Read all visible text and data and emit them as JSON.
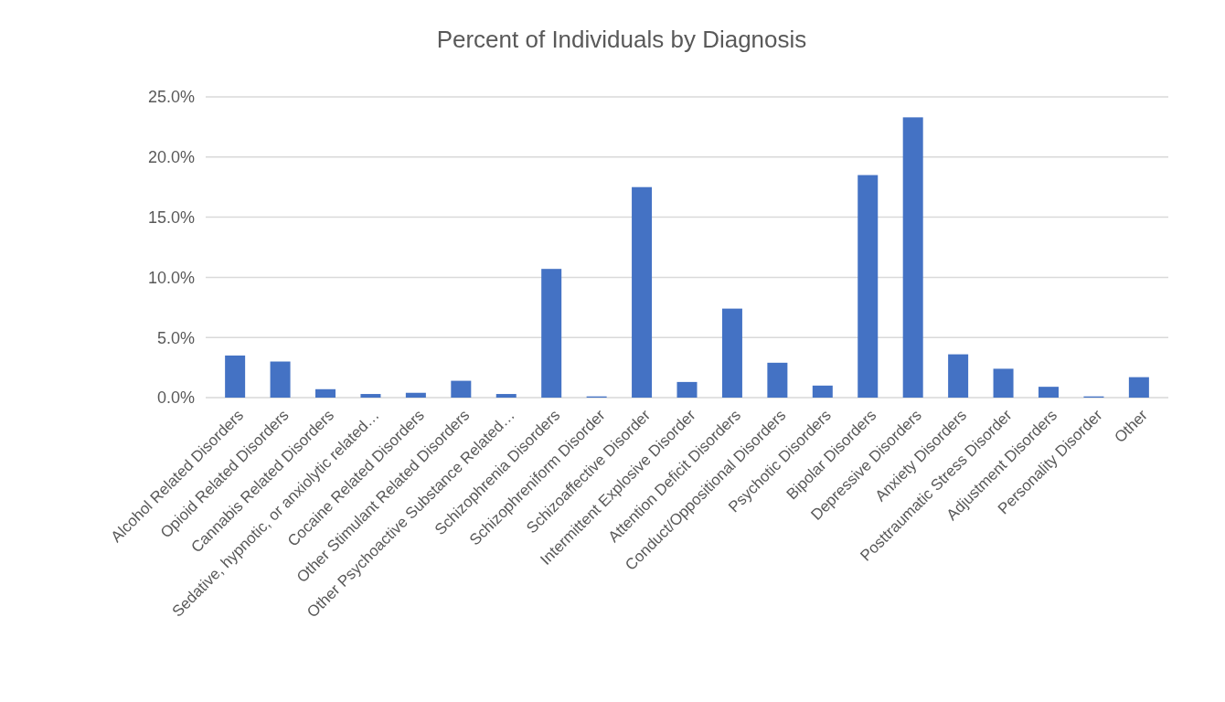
{
  "chart_data": {
    "type": "bar",
    "title": "Percent of Individuals by Diagnosis",
    "categories": [
      "Alcohol Related Disorders",
      "Opioid Related Disorders",
      "Cannabis Related Disorders",
      "Sedative, hypnotic, or anxiolytic related…",
      "Cocaine Related Disorders",
      "Other Stimulant Related Disorders",
      "Other Psychoactive Substance Related…",
      "Schizophrenia Disorders",
      "Schizophreniform Disorder",
      "Schizoaffective Disorder",
      "Intermittent Explosive Disorder",
      "Attention Deficit Disorders",
      "Conduct/Oppositional Disorders",
      "Psychotic Disorders",
      "Bipolar Disorders",
      "Depressive Disorders",
      "Anxiety Disorders",
      "Posttraumatic Stress Disorder",
      "Adjustment Disorders",
      "Personality Disorder",
      "Other"
    ],
    "values": [
      3.5,
      3.0,
      0.7,
      0.3,
      0.4,
      1.4,
      0.3,
      10.7,
      0.1,
      17.5,
      1.3,
      7.4,
      2.9,
      1.0,
      18.5,
      23.3,
      3.6,
      2.4,
      0.9,
      0.1,
      1.7
    ],
    "color": "#4472c4",
    "ylim": [
      0,
      25
    ],
    "yticks": [
      {
        "value": 0,
        "label": "0.0%"
      },
      {
        "value": 5,
        "label": "5.0%"
      },
      {
        "value": 10,
        "label": "10.0%"
      },
      {
        "value": 15,
        "label": "15.0%"
      },
      {
        "value": 20,
        "label": "20.0%"
      },
      {
        "value": 25,
        "label": "25.0%"
      }
    ],
    "grid": true
  }
}
